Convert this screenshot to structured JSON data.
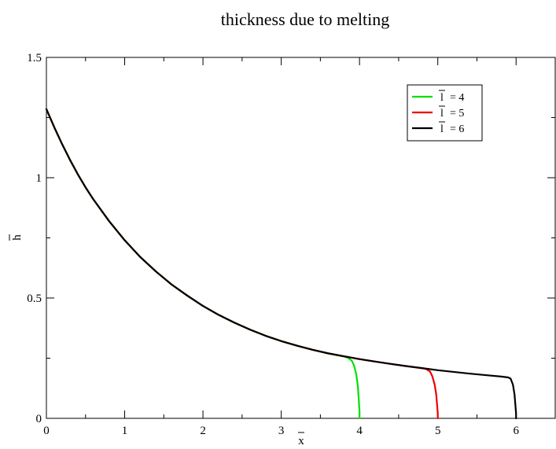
{
  "chart_data": {
    "type": "line",
    "title": "thickness due to melting",
    "xlabel": "x",
    "ylabel": "h",
    "xlim": [
      0,
      6.5
    ],
    "ylim": [
      0,
      1.5
    ],
    "xticks": [
      0,
      1,
      2,
      3,
      4,
      5,
      6
    ],
    "yticks": [
      0,
      0.5,
      1,
      1.5
    ],
    "xtick_labels": [
      "0",
      "1",
      "2",
      "3",
      "4",
      "5",
      "6"
    ],
    "ytick_labels": [
      "0",
      "0.5",
      "1",
      "1.5"
    ],
    "grid": false,
    "legend_position": "top-right",
    "series": [
      {
        "name": "l = 4",
        "legend_symbol": "l",
        "legend_value": "= 4",
        "color": "#00e000",
        "x": [
          0,
          0.1,
          0.2,
          0.3,
          0.4,
          0.5,
          0.6,
          0.8,
          1.0,
          1.2,
          1.4,
          1.6,
          1.8,
          2.0,
          2.2,
          2.4,
          2.6,
          2.8,
          3.0,
          3.2,
          3.4,
          3.6,
          3.8,
          3.85,
          3.9,
          3.93,
          3.96,
          3.98,
          3.99,
          4.0,
          4.0
        ],
        "y": [
          1.285,
          1.21,
          1.14,
          1.075,
          1.015,
          0.96,
          0.91,
          0.82,
          0.74,
          0.67,
          0.61,
          0.556,
          0.51,
          0.467,
          0.43,
          0.398,
          0.369,
          0.343,
          0.321,
          0.302,
          0.285,
          0.27,
          0.257,
          0.252,
          0.24,
          0.22,
          0.18,
          0.13,
          0.08,
          0.03,
          0
        ]
      },
      {
        "name": "l = 5",
        "legend_symbol": "l",
        "legend_value": "= 5",
        "color": "#ee0000",
        "x": [
          0,
          0.1,
          0.2,
          0.3,
          0.4,
          0.5,
          0.6,
          0.8,
          1.0,
          1.2,
          1.4,
          1.6,
          1.8,
          2.0,
          2.2,
          2.4,
          2.6,
          2.8,
          3.0,
          3.2,
          3.4,
          3.6,
          3.8,
          4.0,
          4.2,
          4.4,
          4.6,
          4.8,
          4.85,
          4.9,
          4.93,
          4.96,
          4.98,
          4.99,
          5.0,
          5.0
        ],
        "y": [
          1.285,
          1.21,
          1.14,
          1.075,
          1.015,
          0.96,
          0.91,
          0.82,
          0.74,
          0.67,
          0.61,
          0.556,
          0.51,
          0.467,
          0.43,
          0.398,
          0.369,
          0.343,
          0.321,
          0.302,
          0.285,
          0.27,
          0.258,
          0.246,
          0.236,
          0.226,
          0.217,
          0.208,
          0.205,
          0.195,
          0.175,
          0.14,
          0.1,
          0.06,
          0.02,
          0
        ]
      },
      {
        "name": "l = 6",
        "legend_symbol": "l",
        "legend_value": "= 6",
        "color": "#000000",
        "x": [
          0,
          0.1,
          0.2,
          0.3,
          0.4,
          0.5,
          0.6,
          0.8,
          1.0,
          1.2,
          1.4,
          1.6,
          1.8,
          2.0,
          2.2,
          2.4,
          2.6,
          2.8,
          3.0,
          3.2,
          3.4,
          3.6,
          3.8,
          4.0,
          4.2,
          4.4,
          4.6,
          4.8,
          5.0,
          5.2,
          5.4,
          5.6,
          5.8,
          5.9,
          5.93,
          5.96,
          5.98,
          5.99,
          6.0,
          6.0
        ],
        "y": [
          1.285,
          1.21,
          1.14,
          1.075,
          1.015,
          0.96,
          0.91,
          0.82,
          0.74,
          0.67,
          0.61,
          0.556,
          0.51,
          0.467,
          0.43,
          0.398,
          0.369,
          0.343,
          0.321,
          0.302,
          0.285,
          0.27,
          0.258,
          0.246,
          0.236,
          0.226,
          0.217,
          0.209,
          0.2,
          0.193,
          0.186,
          0.18,
          0.174,
          0.17,
          0.165,
          0.14,
          0.1,
          0.06,
          0.02,
          0
        ]
      }
    ]
  }
}
